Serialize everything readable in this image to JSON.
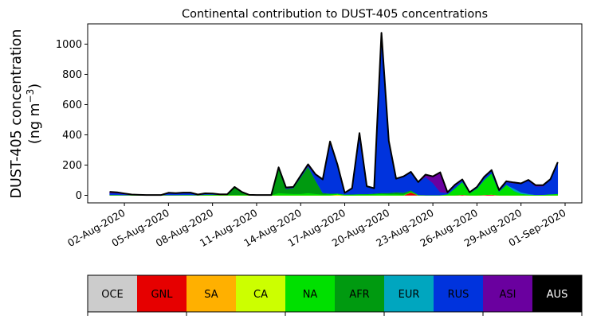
{
  "chart_data": {
    "type": "area",
    "stacked": true,
    "title": "Continental contribution to DUST-405 concentrations",
    "ylabel_line1": "DUST-405 concentration",
    "ylabel_line2": "(ng m",
    "ylabel_sup": "−3",
    "ylabel_close": ")",
    "xlabel": "",
    "x_start": "2020-08-01",
    "x_step_days": 0.5,
    "xlim_days": [
      -1.5,
      32.14
    ],
    "ylim": [
      -50,
      1134
    ],
    "yticks": [
      0,
      200,
      400,
      600,
      800,
      1000
    ],
    "xticks": [
      {
        "day": 1,
        "label": "02-Aug-2020"
      },
      {
        "day": 4,
        "label": "05-Aug-2020"
      },
      {
        "day": 7,
        "label": "08-Aug-2020"
      },
      {
        "day": 10,
        "label": "11-Aug-2020"
      },
      {
        "day": 13,
        "label": "14-Aug-2020"
      },
      {
        "day": 16,
        "label": "17-Aug-2020"
      },
      {
        "day": 19,
        "label": "20-Aug-2020"
      },
      {
        "day": 22,
        "label": "23-Aug-2020"
      },
      {
        "day": 25,
        "label": "26-Aug-2020"
      },
      {
        "day": 28,
        "label": "29-Aug-2020"
      },
      {
        "day": 31,
        "label": "01-Sep-2020"
      }
    ],
    "series": [
      {
        "name": "OCE",
        "color": "#cccccc",
        "text_color": "#000000",
        "values": [
          0,
          0,
          0,
          0,
          0,
          0,
          0,
          0,
          0,
          0,
          0,
          0,
          0,
          0,
          0,
          0,
          0,
          0,
          0,
          0,
          0,
          0,
          0,
          0,
          0,
          0,
          0,
          0,
          0,
          0,
          0,
          0,
          0,
          0,
          0,
          0,
          0,
          0,
          0,
          0,
          0,
          0,
          0,
          0,
          0,
          0,
          0,
          0,
          0,
          0,
          0,
          0,
          0,
          0,
          0,
          0,
          0,
          0,
          0,
          0,
          0,
          0
        ]
      },
      {
        "name": "GNL",
        "color": "#e60000",
        "text_color": "#000000",
        "values": [
          0,
          0,
          0,
          0,
          0,
          0,
          0,
          0,
          0,
          0,
          0,
          0,
          0,
          0,
          0,
          0,
          0,
          0,
          0,
          0,
          0,
          0,
          0,
          0,
          0,
          0,
          0,
          0,
          0,
          0,
          0,
          0,
          0,
          0,
          0,
          0,
          0,
          0,
          0,
          0,
          0,
          20,
          0,
          0,
          0,
          0,
          0,
          0,
          4,
          0,
          0,
          3,
          5,
          0,
          0,
          0,
          0,
          0,
          0,
          0,
          0,
          0
        ]
      },
      {
        "name": "SA",
        "color": "#ffb000",
        "text_color": "#000000",
        "values": [
          0,
          0,
          0,
          0,
          0,
          0,
          0,
          0,
          0,
          0,
          0,
          0,
          0,
          0,
          0,
          0,
          0,
          0,
          0,
          0,
          0,
          0,
          0,
          0,
          0,
          0,
          0,
          0,
          0,
          0,
          0,
          0,
          0,
          0,
          0,
          0,
          0,
          0,
          0,
          0,
          0,
          0,
          0,
          0,
          0,
          0,
          0,
          0,
          0,
          0,
          0,
          0,
          0,
          0,
          0,
          0,
          0,
          0,
          0,
          0,
          0,
          0
        ]
      },
      {
        "name": "CA",
        "color": "#ccff00",
        "text_color": "#000000",
        "values": [
          0,
          0,
          0,
          0,
          0,
          0,
          0,
          0,
          0,
          0,
          0,
          0,
          0,
          0,
          0,
          0,
          0,
          0,
          0,
          0,
          0,
          0,
          0,
          0,
          0,
          0,
          0,
          0,
          0,
          0,
          0,
          5,
          0,
          0,
          0,
          0,
          0,
          0,
          0,
          0,
          0,
          0,
          0,
          0,
          0,
          0,
          0,
          0,
          0,
          0,
          0,
          0,
          0,
          0,
          0,
          0,
          0,
          0,
          0,
          0,
          0,
          0
        ]
      },
      {
        "name": "NA",
        "color": "#00e000",
        "text_color": "#000000",
        "values": [
          3,
          3,
          2,
          1,
          1,
          1,
          1,
          1,
          2,
          2,
          3,
          3,
          1,
          3,
          3,
          2,
          2,
          4,
          3,
          1,
          1,
          1,
          1,
          15,
          12,
          10,
          10,
          15,
          10,
          6,
          8,
          6,
          5,
          5,
          6,
          6,
          8,
          10,
          8,
          8,
          6,
          8,
          2,
          1,
          1,
          1,
          8,
          45,
          85,
          15,
          45,
          100,
          140,
          25,
          70,
          30,
          10,
          5,
          3,
          4,
          8,
          10
        ]
      },
      {
        "name": "AFR",
        "color": "#009a10",
        "text_color": "#000000",
        "values": [
          0,
          0,
          0,
          0,
          0,
          0,
          0,
          0,
          0,
          0,
          0,
          0,
          0,
          2,
          2,
          2,
          3,
          48,
          17,
          2,
          1,
          1,
          1,
          160,
          30,
          38,
          108,
          175,
          90,
          10,
          4,
          2,
          1,
          2,
          3,
          3,
          4,
          6,
          8,
          12,
          12,
          5,
          1,
          0,
          0,
          0,
          0,
          2,
          0,
          0,
          0,
          0,
          0,
          0,
          0,
          0,
          0,
          0,
          0,
          0,
          0,
          0
        ]
      },
      {
        "name": "EUR",
        "color": "#00a6bf",
        "text_color": "#000000",
        "values": [
          0,
          0,
          0,
          0,
          0,
          0,
          0,
          0,
          0,
          0,
          0,
          0,
          0,
          0,
          0,
          0,
          0,
          0,
          0,
          0,
          0,
          0,
          0,
          0,
          0,
          0,
          0,
          0,
          0,
          0,
          0,
          0,
          0,
          0,
          0,
          0,
          0,
          0,
          0,
          0,
          0,
          0,
          0,
          0,
          0,
          0,
          0,
          0,
          0,
          0,
          0,
          0,
          0,
          0,
          0,
          15,
          10,
          5,
          0,
          0,
          0,
          0
        ]
      },
      {
        "name": "RUS",
        "color": "#0033dd",
        "text_color": "#000000",
        "values": [
          12,
          11,
          6,
          3,
          1,
          1,
          1,
          1,
          11,
          9,
          11,
          11,
          3,
          6,
          5,
          2,
          1,
          2,
          1,
          0,
          0,
          0,
          0,
          3,
          3,
          2,
          4,
          5,
          35,
          86,
          340,
          190,
          10,
          39,
          400,
          50,
          34,
          1055,
          340,
          88,
          105,
          120,
          83,
          120,
          80,
          20,
          8,
          15,
          10,
          3,
          8,
          15,
          17,
          7,
          18,
          35,
          55,
          87,
          56,
          56,
          94,
          207
        ]
      },
      {
        "name": "ASI",
        "color": "#6a009f",
        "text_color": "#000000",
        "values": [
          8,
          6,
          4,
          1,
          1,
          0,
          0,
          0,
          4,
          3,
          4,
          4,
          1,
          2,
          2,
          1,
          1,
          1,
          1,
          0,
          0,
          0,
          0,
          7,
          7,
          5,
          8,
          10,
          5,
          3,
          4,
          2,
          1,
          1,
          3,
          1,
          1,
          4,
          4,
          2,
          2,
          2,
          2,
          16,
          44,
          131,
          4,
          8,
          6,
          2,
          3,
          5,
          5,
          3,
          5,
          5,
          4,
          5,
          8,
          7,
          5,
          2
        ]
      },
      {
        "name": "AUS",
        "color": "#000000",
        "text_color": "#ffffff",
        "values": [
          0,
          0,
          0,
          0,
          0,
          0,
          0,
          0,
          0,
          0,
          0,
          0,
          0,
          0,
          0,
          0,
          0,
          0,
          0,
          0,
          0,
          0,
          0,
          0,
          0,
          0,
          0,
          0,
          0,
          0,
          0,
          0,
          0,
          0,
          0,
          0,
          0,
          0,
          0,
          0,
          0,
          0,
          0,
          0,
          0,
          0,
          0,
          0,
          0,
          0,
          0,
          0,
          0,
          0,
          0,
          0,
          0,
          0,
          0,
          0,
          0,
          0
        ]
      }
    ],
    "total_line_color": "#000000",
    "legend": "colorbar-bottom"
  }
}
